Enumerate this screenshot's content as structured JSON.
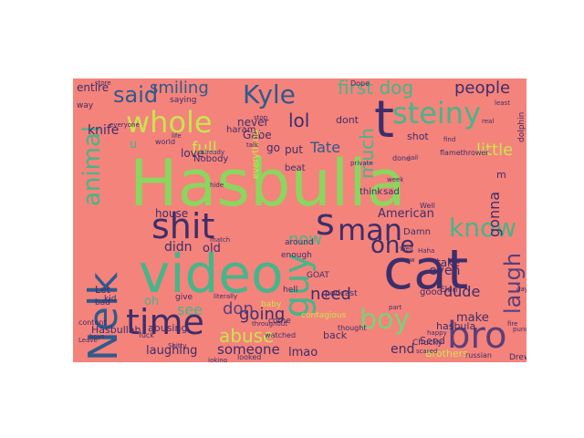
{
  "palette": {
    "background": "#f4837b",
    "colors": [
      "#8bd65f",
      "#2f5a8c",
      "#3d2e6b",
      "#c9e44f",
      "#46b58a",
      "#5b3f7a",
      "#7ad17a"
    ]
  },
  "words": [
    {
      "text": "Hasbulla",
      "color": "#8bd65f"
    },
    {
      "text": "cat",
      "color": "#3d2e6b"
    },
    {
      "text": "video",
      "color": "#46b58a"
    },
    {
      "text": "t",
      "color": "#3d2e6b"
    },
    {
      "text": "Nelk",
      "color": "#2f5a8c"
    },
    {
      "text": "shit",
      "color": "#3d2e6b"
    },
    {
      "text": "time",
      "color": "#3d2e6b"
    },
    {
      "text": "bro",
      "color": "#5b3f7a"
    },
    {
      "text": "s",
      "color": "#3d2e6b"
    },
    {
      "text": "guy",
      "color": "#46b58a"
    },
    {
      "text": "whole",
      "color": "#c9e44f"
    },
    {
      "text": "steiny",
      "color": "#46b58a"
    },
    {
      "text": "man",
      "color": "#3d2e6b"
    },
    {
      "text": "boy",
      "color": "#7ad17a"
    },
    {
      "text": "Kyle",
      "color": "#2f5a8c"
    },
    {
      "text": "animal",
      "color": "#46b58a"
    },
    {
      "text": "know",
      "color": "#46b58a"
    },
    {
      "text": "said",
      "color": "#2f5a8c"
    },
    {
      "text": "one",
      "color": "#3d2e6b"
    },
    {
      "text": "laugh",
      "color": "#5b3f7a"
    },
    {
      "text": "abuse",
      "color": "#c9e44f"
    },
    {
      "text": "first dog",
      "color": "#46b58a"
    },
    {
      "text": "smiling",
      "color": "#2f5a8c"
    },
    {
      "text": "lol",
      "color": "#3d2e6b"
    },
    {
      "text": "people",
      "color": "#3d2e6b"
    },
    {
      "text": "much",
      "color": "#46b58a"
    },
    {
      "text": "need",
      "color": "#3d2e6b"
    },
    {
      "text": "going",
      "color": "#3d2e6b"
    },
    {
      "text": "now",
      "color": "#46b58a"
    },
    {
      "text": "don",
      "color": "#5b3f7a"
    },
    {
      "text": "see",
      "color": "#46b58a"
    },
    {
      "text": "gonna",
      "color": "#3d2e6b"
    },
    {
      "text": "dude",
      "color": "#3d2e6b"
    },
    {
      "text": "little",
      "color": "#c9e44f"
    },
    {
      "text": "full",
      "color": "#c9e44f"
    },
    {
      "text": "Tate",
      "color": "#2f5a8c"
    },
    {
      "text": "knife",
      "color": "#3d2e6b"
    },
    {
      "text": "didn",
      "color": "#3d2e6b"
    },
    {
      "text": "old",
      "color": "#3d2e6b"
    },
    {
      "text": "house",
      "color": "#3d2e6b"
    },
    {
      "text": "someone",
      "color": "#3d2e6b"
    },
    {
      "text": "laughing",
      "color": "#3d2e6b"
    },
    {
      "text": "lmao",
      "color": "#3d2e6b"
    },
    {
      "text": "end",
      "color": "#3d2e6b"
    },
    {
      "text": "even",
      "color": "#3d2e6b"
    },
    {
      "text": "make",
      "color": "#3d2e6b"
    },
    {
      "text": "take",
      "color": "#3d2e6b"
    },
    {
      "text": "American",
      "color": "#3d2e6b"
    },
    {
      "text": "entire",
      "color": "#3d2e6b"
    },
    {
      "text": "never",
      "color": "#3d2e6b"
    },
    {
      "text": "love",
      "color": "#3d2e6b"
    },
    {
      "text": "Gabe",
      "color": "#3d2e6b"
    },
    {
      "text": "put",
      "color": "#3d2e6b"
    },
    {
      "text": "go",
      "color": "#3d2e6b"
    },
    {
      "text": "dont",
      "color": "#3d2e6b"
    },
    {
      "text": "shot",
      "color": "#3d2e6b"
    },
    {
      "text": "hasbula",
      "color": "#3d2e6b"
    },
    {
      "text": "Hasbullah",
      "color": "#3d2e6b"
    },
    {
      "text": "abusing",
      "color": "#3d2e6b"
    },
    {
      "text": "Let",
      "color": "#3d2e6b"
    },
    {
      "text": "Brothers",
      "color": "#c9e44f"
    },
    {
      "text": "back",
      "color": "#3d2e6b"
    },
    {
      "text": "Send",
      "color": "#3d2e6b"
    },
    {
      "text": "Chucky",
      "color": "#3d2e6b"
    },
    {
      "text": "Drew",
      "color": "#3d2e6b"
    },
    {
      "text": "dolphin",
      "color": "#3d2e6b"
    },
    {
      "text": "beat",
      "color": "#3d2e6b"
    },
    {
      "text": "Damn",
      "color": "#3d2e6b"
    },
    {
      "text": "think",
      "color": "#3d2e6b"
    },
    {
      "text": "good",
      "color": "#3d2e6b"
    },
    {
      "text": "Nobody",
      "color": "#3d2e6b"
    },
    {
      "text": "everything",
      "color": "#c9e44f"
    },
    {
      "text": "contagious",
      "color": "#c9e44f"
    },
    {
      "text": "oh",
      "color": "#46b58a"
    },
    {
      "text": "m",
      "color": "#3d2e6b"
    },
    {
      "text": "u",
      "color": "#46b58a"
    },
    {
      "text": "sad",
      "color": "#3d2e6b"
    },
    {
      "text": "haram",
      "color": "#3d2e6b"
    },
    {
      "text": "Dope",
      "color": "#3d2e6b"
    },
    {
      "text": "come",
      "color": "#3d2e6b"
    },
    {
      "text": "baby",
      "color": "#c9e44f"
    },
    {
      "text": "bad",
      "color": "#3d2e6b"
    },
    {
      "text": "kid",
      "color": "#3d2e6b"
    },
    {
      "text": "give",
      "color": "#3d2e6b"
    },
    {
      "text": "around",
      "color": "#3d2e6b"
    },
    {
      "text": "enough",
      "color": "#3d2e6b"
    },
    {
      "text": "podcast",
      "color": "#3d2e6b"
    },
    {
      "text": "Elon",
      "color": "#3d2e6b"
    },
    {
      "text": "hell",
      "color": "#3d2e6b"
    },
    {
      "text": "GOAT",
      "color": "#3d2e6b"
    },
    {
      "text": "Well",
      "color": "#3d2e6b"
    },
    {
      "text": "flamethrower",
      "color": "#3d2e6b"
    },
    {
      "text": "saying",
      "color": "#3d2e6b"
    },
    {
      "text": "way",
      "color": "#3d2e6b"
    },
    {
      "text": "world",
      "color": "#3d2e6b"
    },
    {
      "text": "fuck",
      "color": "#3d2e6b"
    },
    {
      "text": "content",
      "color": "#3d2e6b"
    },
    {
      "text": "watched",
      "color": "#3d2e6b"
    },
    {
      "text": "thought",
      "color": "#3d2e6b"
    },
    {
      "text": "looked",
      "color": "#3d2e6b"
    },
    {
      "text": "russian",
      "color": "#3d2e6b"
    },
    {
      "text": "already",
      "color": "#3d2e6b"
    },
    {
      "text": "store",
      "color": "#3d2e6b"
    },
    {
      "text": "everyone",
      "color": "#3d2e6b"
    },
    {
      "text": "happy",
      "color": "#3d2e6b"
    },
    {
      "text": "scared",
      "color": "#3d2e6b"
    },
    {
      "text": "week",
      "color": "#3d2e6b"
    },
    {
      "text": "private",
      "color": "#3d2e6b"
    },
    {
      "text": "done",
      "color": "#3d2e6b"
    },
    {
      "text": "gay",
      "color": "#3d2e6b"
    },
    {
      "text": "fire",
      "color": "#3d2e6b"
    },
    {
      "text": "match",
      "color": "#3d2e6b"
    },
    {
      "text": "hide",
      "color": "#3d2e6b"
    },
    {
      "text": "jail",
      "color": "#3d2e6b"
    },
    {
      "text": "part",
      "color": "#3d2e6b"
    },
    {
      "text": "literally",
      "color": "#3d2e6b"
    },
    {
      "text": "throughout",
      "color": "#3d2e6b"
    },
    {
      "text": "least",
      "color": "#3d2e6b"
    },
    {
      "text": "Leave",
      "color": "#3d2e6b"
    },
    {
      "text": "Haha",
      "color": "#3d2e6b"
    },
    {
      "text": "talk",
      "color": "#3d2e6b"
    },
    {
      "text": "stop",
      "color": "#3d2e6b"
    },
    {
      "text": "Shitty",
      "color": "#3d2e6b"
    },
    {
      "text": "punching",
      "color": "#3d2e6b"
    },
    {
      "text": "joking",
      "color": "#3d2e6b"
    },
    {
      "text": "boys",
      "color": "#3d2e6b"
    },
    {
      "text": "Well",
      "color": "#3d2e6b"
    },
    {
      "text": "crew",
      "color": "#3d2e6b"
    },
    {
      "text": "real",
      "color": "#3d2e6b"
    },
    {
      "text": "find",
      "color": "#3d2e6b"
    },
    {
      "text": "life",
      "color": "#3d2e6b"
    }
  ]
}
